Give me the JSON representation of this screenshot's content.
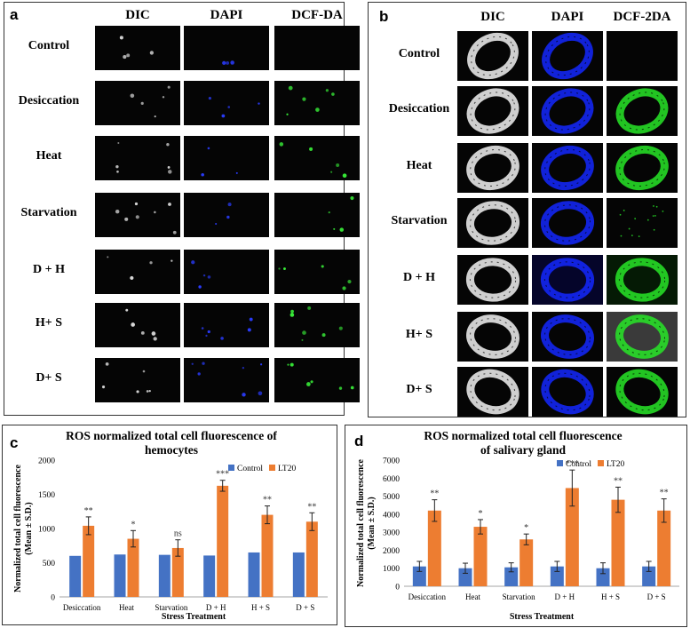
{
  "panel_a": {
    "label": "a",
    "columns": [
      "DIC",
      "DAPI",
      "DCF-DA"
    ],
    "rows": [
      "Control",
      "Desiccation",
      "Heat",
      "Starvation",
      "D + H",
      "H+ S",
      "D+ S"
    ],
    "channel_colors": {
      "dic": "#d8d8d8",
      "dapi": "#2a3cff",
      "dcf": "#3cff3c"
    }
  },
  "panel_b": {
    "label": "b",
    "columns": [
      "DIC",
      "DAPI",
      "DCF-2DA"
    ],
    "rows": [
      "Control",
      "Desiccation",
      "Heat",
      "Starvation",
      "D + H",
      "H+ S",
      "D+ S"
    ],
    "channel_colors": {
      "dic": "#e6e6e6",
      "dapi": "#1428ff",
      "dcf": "#28e628"
    }
  },
  "panel_c": {
    "label": "c",
    "title_line1": "ROS normalized  total cell fluorescence of",
    "title_line2": "hemocytes"
  },
  "panel_d": {
    "label": "d",
    "title_line1": "ROS normalized  total cell fluorescence",
    "title_line2": "of salivary gland"
  },
  "chart_data": [
    {
      "type": "bar",
      "panel": "c",
      "title": "ROS normalized  total cell fluorescence of hemocytes",
      "xlabel": "Stress Treatment",
      "ylabel_line1": "Normalized total cell fluorescence",
      "ylabel_line2": "(Mean ± S.D.)",
      "categories": [
        "Desiccation",
        "Heat",
        "Starvation",
        "D + H",
        "H + S",
        "D + S"
      ],
      "ylim": [
        0,
        2000
      ],
      "yticks": [
        0,
        500,
        1000,
        1500,
        2000
      ],
      "legend": "top-right",
      "series": [
        {
          "name": "Control",
          "color": "#4472c4",
          "values": [
            600,
            620,
            615,
            605,
            650,
            650
          ]
        },
        {
          "name": "LT20",
          "color": "#ed7d31",
          "values": [
            1040,
            850,
            715,
            1625,
            1200,
            1100
          ],
          "errors": [
            130,
            120,
            120,
            80,
            130,
            130
          ]
        }
      ],
      "significance": [
        "**",
        "*",
        "ns",
        "***",
        "**",
        "**"
      ]
    },
    {
      "type": "bar",
      "panel": "d",
      "title": "ROS normalized  total cell fluorescence of salivary gland",
      "xlabel": "Stress Treatment",
      "ylabel_line1": "Normalized total cell fluorescence",
      "ylabel_line2": "(Mean ± S.D.)",
      "categories": [
        "Desiccation",
        "Heat",
        "Starvation",
        "D + H",
        "H + S",
        "D + S"
      ],
      "ylim": [
        0,
        7000
      ],
      "yticks": [
        0,
        1000,
        2000,
        3000,
        4000,
        5000,
        6000,
        7000
      ],
      "legend": "top-right",
      "series": [
        {
          "name": "Control",
          "color": "#4472c4",
          "values": [
            1100,
            1000,
            1050,
            1100,
            1000,
            1100
          ],
          "errors": [
            280,
            280,
            250,
            280,
            300,
            280
          ]
        },
        {
          "name": "LT20",
          "color": "#ed7d31",
          "values": [
            4200,
            3300,
            2600,
            5450,
            4800,
            4200
          ],
          "errors": [
            600,
            400,
            300,
            1000,
            700,
            650
          ]
        }
      ],
      "significance": [
        "**",
        "*",
        "*",
        "***",
        "**",
        "**"
      ]
    }
  ]
}
